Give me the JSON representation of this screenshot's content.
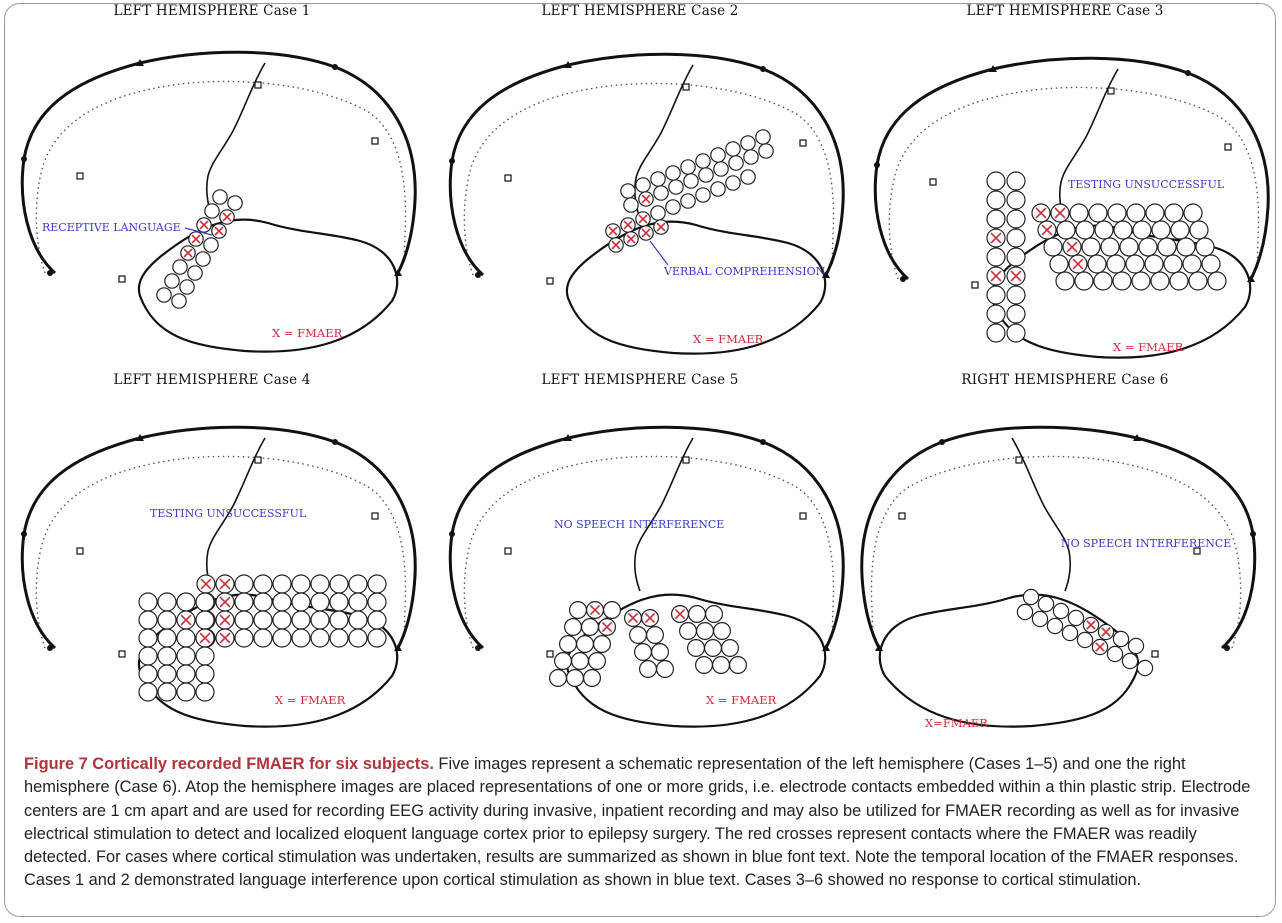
{
  "figure": {
    "panels": [
      {
        "id": "case-1",
        "title": "LEFT HEMISPHERE   Case 1",
        "note": "RECEPTIVE LANGUAGE",
        "legend": "X = FMAER"
      },
      {
        "id": "case-2",
        "title": "LEFT HEMISPHERE   Case 2",
        "note": "VERBAL COMPREHENSION",
        "legend": "X = FMAER"
      },
      {
        "id": "case-3",
        "title": "LEFT HEMISPHERE   Case 3",
        "note": "TESTING UNSUCCESSFUL",
        "legend": "X = FMAER"
      },
      {
        "id": "case-4",
        "title": "LEFT HEMISPHERE   Case 4",
        "note": "TESTING UNSUCCESSFUL",
        "legend": "X = FMAER"
      },
      {
        "id": "case-5",
        "title": "LEFT HEMISPHERE   Case 5",
        "note": "NO SPEECH INTERFERENCE",
        "legend": "X = FMAER"
      },
      {
        "id": "case-6",
        "title": "RIGHT HEMISPHERE   Case 6",
        "note": "NO SPEECH INTERFERENCE",
        "legend": "X=FMAER"
      }
    ],
    "caption": {
      "label": "Figure 7 Cortically recorded FMAER for six subjects.",
      "text": " Five images represent a schematic representation of the left hemisphere (Cases 1–5) and one the right hemisphere (Case 6). Atop the hemisphere images are placed representations of one or more grids, i.e. electrode contacts embedded within a thin plastic strip. Electrode centers are 1 cm apart and are used for recording EEG activity during invasive, inpatient recording and may also be utilized for FMAER recording as well as for invasive electrical stimulation to detect and localized eloquent language cortex prior to epilepsy surgery. The red crosses represent contacts where the FMAER was readily detected. For cases where cortical stimulation was undertaken, results are summarized as shown in blue font text. Note the temporal location of the FMAER responses. Cases 1 and 2 demonstrated language interference upon cortical stimulation as shown in blue text. Cases 3–6 showed no response to cortical stimulation."
    },
    "colors": {
      "note": "#3a3ad0",
      "legend": "#d8283a",
      "marker": "#cc2b3a",
      "outline": "#111111"
    }
  }
}
